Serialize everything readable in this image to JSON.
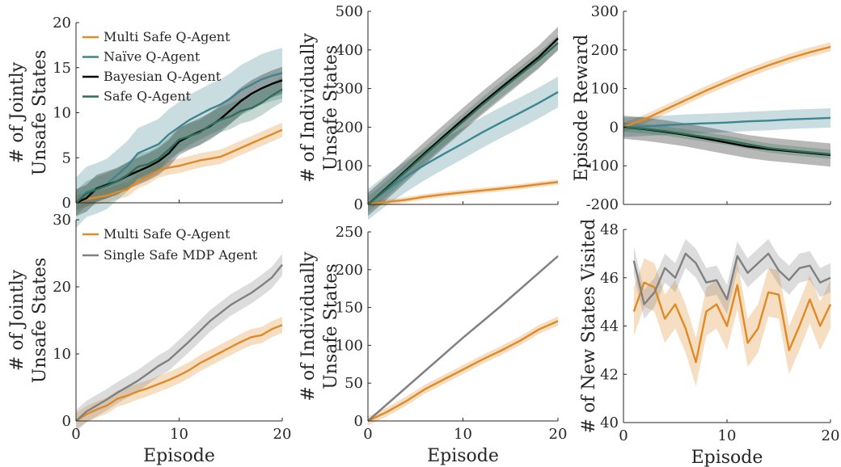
{
  "colors": {
    "multi_safe": "#e08a26",
    "naive": "#3d8590",
    "bayesian": "#000000",
    "safe": "#2f6e55",
    "single_safe": "#808080"
  },
  "chart_data": [
    {
      "id": "top-left",
      "type": "line",
      "xlabel": "",
      "ylabel": [
        "# of Jointly",
        "Unsafe States"
      ],
      "xlim": [
        0,
        20
      ],
      "ylim": [
        0,
        20
      ],
      "xticks": [
        0,
        10,
        20
      ],
      "yticks": [
        0,
        5,
        10,
        15,
        20
      ],
      "show_xticklabels": false,
      "legend": "top-left",
      "x": [
        0,
        1,
        2,
        3,
        4,
        5,
        6,
        7,
        8,
        9,
        10,
        11,
        12,
        13,
        14,
        15,
        16,
        17,
        18,
        19,
        20
      ],
      "series": [
        {
          "name": "Multi Safe Q-Agent",
          "color_key": "multi_safe",
          "values": [
            0,
            0.4,
            0.6,
            0.8,
            1.2,
            1.5,
            2.4,
            2.9,
            3.6,
            3.9,
            4.1,
            4.4,
            4.7,
            4.9,
            5.1,
            5.6,
            6.1,
            6.6,
            7.1,
            7.6,
            8.1
          ],
          "band": 0.8
        },
        {
          "name": "Naïve Q-Agent",
          "color_key": "naive",
          "values": [
            0,
            1.2,
            1.6,
            2.1,
            3.1,
            4.1,
            5.5,
            6.0,
            6.5,
            7.6,
            8.4,
            9.2,
            9.8,
            10.4,
            10.9,
            11.6,
            12.5,
            13.1,
            13.7,
            14.1,
            14.4
          ],
          "band": 2.8
        },
        {
          "name": "Bayesian Q-Agent",
          "color_key": "bayesian",
          "values": [
            0,
            0.5,
            1.6,
            2.0,
            2.4,
            3.0,
            3.5,
            4.0,
            4.6,
            5.5,
            6.8,
            7.4,
            7.9,
            8.5,
            9.3,
            10.3,
            11.3,
            12.1,
            12.7,
            13.2,
            13.6
          ],
          "band": 1.5
        },
        {
          "name": "Safe Q-Agent",
          "color_key": "safe",
          "values": [
            0,
            1.0,
            1.5,
            1.9,
            2.4,
            3.1,
            4.0,
            4.3,
            4.9,
            5.9,
            7.0,
            7.4,
            7.8,
            8.6,
            9.2,
            9.6,
            10.2,
            10.5,
            11.1,
            11.9,
            12.6
          ],
          "band": 1.4
        }
      ]
    },
    {
      "id": "top-middle",
      "type": "line",
      "xlabel": "",
      "ylabel": [
        "# of Individually",
        "Unsafe States"
      ],
      "xlim": [
        0,
        20
      ],
      "ylim": [
        0,
        500
      ],
      "xticks": [
        0,
        10,
        20
      ],
      "yticks": [
        0,
        100,
        200,
        300,
        400,
        500
      ],
      "show_xticklabels": false,
      "x": [
        0,
        2,
        4,
        6,
        8,
        10,
        12,
        14,
        16,
        18,
        20
      ],
      "series": [
        {
          "name": "Multi Safe Q-Agent",
          "color_key": "multi_safe",
          "values": [
            0,
            6,
            12,
            20,
            26,
            31,
            36,
            41,
            46,
            52,
            58
          ],
          "band": 7
        },
        {
          "name": "Naïve Q-Agent",
          "color_key": "naive",
          "values": [
            0,
            38,
            72,
            103,
            131,
            158,
            186,
            212,
            237,
            263,
            291
          ],
          "band": 40
        },
        {
          "name": "Bayesian Q-Agent",
          "color_key": "bayesian",
          "values": [
            0,
            43,
            88,
            133,
            177,
            220,
            262,
            302,
            342,
            382,
            430
          ],
          "band": 30
        },
        {
          "name": "Safe Q-Agent",
          "color_key": "safe",
          "values": [
            0,
            41,
            85,
            129,
            172,
            214,
            257,
            297,
            336,
            375,
            418
          ],
          "band": 20
        }
      ]
    },
    {
      "id": "top-right",
      "type": "line",
      "xlabel": "",
      "ylabel": [
        "Episode Reward"
      ],
      "xlim": [
        0,
        20
      ],
      "ylim": [
        -200,
        300
      ],
      "xticks": [
        0,
        10,
        20
      ],
      "yticks": [
        -200,
        -100,
        0,
        100,
        200,
        300
      ],
      "show_xticklabels": false,
      "x": [
        0,
        2,
        4,
        6,
        8,
        10,
        12,
        14,
        16,
        18,
        20
      ],
      "series": [
        {
          "name": "Multi Safe Q-Agent",
          "color_key": "multi_safe",
          "values": [
            0,
            20,
            45,
            70,
            95,
            118,
            140,
            160,
            178,
            194,
            208
          ],
          "band": 12
        },
        {
          "name": "Naïve Q-Agent",
          "color_key": "naive",
          "values": [
            0,
            2,
            5,
            8,
            10,
            12,
            15,
            17,
            20,
            22,
            24
          ],
          "band": 25
        },
        {
          "name": "Bayesian Q-Agent",
          "color_key": "bayesian",
          "values": [
            0,
            -5,
            -12,
            -20,
            -30,
            -40,
            -50,
            -57,
            -62,
            -67,
            -72
          ],
          "band": 30
        },
        {
          "name": "Safe Q-Agent",
          "color_key": "safe",
          "values": [
            0,
            -4,
            -10,
            -18,
            -26,
            -34,
            -44,
            -54,
            -60,
            -65,
            -70
          ],
          "band": 12
        }
      ]
    },
    {
      "id": "bottom-left",
      "type": "line",
      "xlabel": "Episode",
      "ylabel": [
        "# of Jointly",
        "Unsafe States"
      ],
      "xlim": [
        0,
        20
      ],
      "ylim": [
        0,
        30
      ],
      "xticks": [
        0,
        10,
        20
      ],
      "yticks": [
        0,
        10,
        20,
        30
      ],
      "show_xticklabels": true,
      "legend": "top-left",
      "x": [
        0,
        1,
        2,
        3,
        4,
        5,
        6,
        7,
        8,
        9,
        10,
        11,
        12,
        13,
        14,
        15,
        16,
        17,
        18,
        19,
        20
      ],
      "series": [
        {
          "name": "Multi Safe Q-Agent",
          "color_key": "multi_safe",
          "values": [
            0,
            1.0,
            1.7,
            2.3,
            3.3,
            3.8,
            4.4,
            4.9,
            5.5,
            6.1,
            6.8,
            7.6,
            8.6,
            9.4,
            10.2,
            11.0,
            11.8,
            12.5,
            12.8,
            13.7,
            14.3
          ],
          "band": 1.2
        },
        {
          "name": "Single Safe MDP Agent",
          "color_key": "single_safe",
          "values": [
            0,
            1.4,
            2.3,
            3.2,
            4.2,
            5.1,
            6.0,
            7.1,
            8.2,
            9.1,
            10.5,
            11.9,
            13.4,
            14.9,
            16.1,
            17.3,
            18.2,
            19.1,
            20.2,
            21.4,
            23.3
          ],
          "band": 1.6
        }
      ]
    },
    {
      "id": "bottom-middle",
      "type": "line",
      "xlabel": "Episode",
      "ylabel": [
        "# of Individually",
        "Unsafe States"
      ],
      "xlim": [
        0,
        20
      ],
      "ylim": [
        0,
        250
      ],
      "xticks": [
        0,
        10,
        20
      ],
      "yticks": [
        0,
        50,
        100,
        150,
        200,
        250
      ],
      "show_xticklabels": true,
      "x": [
        0,
        2,
        4,
        6,
        8,
        10,
        12,
        14,
        16,
        18,
        20
      ],
      "series": [
        {
          "name": "Multi Safe Q-Agent",
          "color_key": "multi_safe",
          "values": [
            0,
            12,
            26,
            42,
            55,
            68,
            81,
            93,
            106,
            121,
            132
          ],
          "band": 6
        },
        {
          "name": "Single Safe MDP Agent",
          "color_key": "single_safe",
          "values": [
            0,
            22,
            44,
            66,
            88,
            110,
            131,
            152,
            174,
            196,
            218
          ],
          "band": 2
        }
      ]
    },
    {
      "id": "bottom-right",
      "type": "line",
      "xlabel": "Episode",
      "ylabel": [
        "# of New States Visited"
      ],
      "xlim": [
        0,
        20
      ],
      "ylim": [
        40,
        48
      ],
      "xticks": [
        0,
        10,
        20
      ],
      "yticks": [
        40,
        42,
        44,
        46,
        48
      ],
      "show_xticklabels": true,
      "x": [
        1,
        2,
        3,
        4,
        5,
        6,
        7,
        8,
        9,
        10,
        11,
        12,
        13,
        14,
        15,
        16,
        17,
        18,
        19,
        20
      ],
      "series": [
        {
          "name": "Multi Safe Q-Agent",
          "color_key": "multi_safe",
          "values": [
            44.6,
            45.8,
            45.6,
            44.3,
            44.9,
            43.9,
            42.5,
            44.6,
            44.9,
            44.0,
            45.7,
            43.3,
            43.9,
            45.4,
            45.3,
            43.0,
            44.0,
            45.1,
            44.0,
            44.9
          ],
          "band": 1.0
        },
        {
          "name": "Single Safe MDP Agent",
          "color_key": "single_safe",
          "values": [
            46.7,
            44.9,
            45.4,
            46.4,
            46.0,
            47.0,
            46.6,
            45.8,
            45.9,
            45.1,
            46.9,
            46.2,
            46.6,
            47.0,
            46.3,
            45.9,
            46.4,
            46.5,
            45.8,
            46.0
          ],
          "band": 0.6
        }
      ]
    }
  ]
}
